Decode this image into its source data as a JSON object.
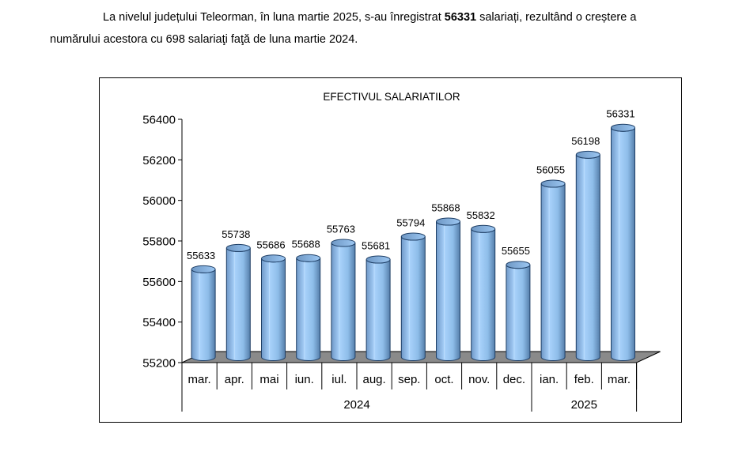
{
  "paragraph": {
    "line1_before": "La nivelul județului Teleorman, în luna martie 2025, s-au înregistrat ",
    "line1_bold": "56331",
    "line1_after": " salariați, rezultând o creștere a",
    "line2": "numărului acestora cu 698 salariaţi faţă de luna martie 2024."
  },
  "chart_data": {
    "type": "bar",
    "title": "EFECTIVUL SALARIATILOR",
    "categories": [
      "mar.",
      "apr.",
      "mai",
      "iun.",
      "iul.",
      "aug.",
      "sep.",
      "oct.",
      "nov.",
      "dec.",
      "ian.",
      "feb.",
      "mar."
    ],
    "values": [
      55633,
      55738,
      55686,
      55688,
      55763,
      55681,
      55794,
      55868,
      55832,
      55655,
      56055,
      56198,
      56331
    ],
    "groups": [
      {
        "label": "2024",
        "count": 10
      },
      {
        "label": "2025",
        "count": 3
      }
    ],
    "ylim": [
      55200,
      56400
    ],
    "yticks": [
      55200,
      55400,
      55600,
      55800,
      56000,
      56200,
      56400
    ],
    "xlabel": "",
    "ylabel": "",
    "bar_color": "#99CCFF",
    "floor_color": "#808080",
    "legend": "none"
  }
}
